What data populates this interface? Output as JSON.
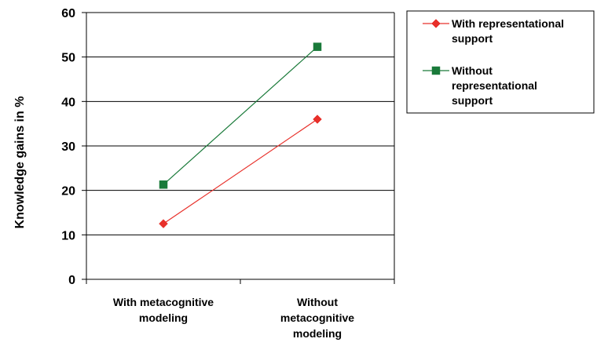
{
  "chart_data": {
    "type": "line",
    "categories": [
      [
        "With metacognitive",
        "modeling"
      ],
      [
        "Without",
        "metacognitive",
        "modeling"
      ]
    ],
    "ylabel": "Knowledge gains in %",
    "ylim": [
      0,
      60
    ],
    "yticks": [
      0,
      10,
      20,
      30,
      40,
      50,
      60
    ],
    "grid": true,
    "legend_position": "right",
    "series": [
      {
        "name": [
          "With representational",
          "support"
        ],
        "color": "#e8302a",
        "marker": "diamond",
        "values": [
          12.5,
          36
        ]
      },
      {
        "name": [
          "Without",
          "representational",
          "support"
        ],
        "color": "#1a7a3a",
        "marker": "square",
        "values": [
          21.3,
          52.3
        ]
      }
    ]
  }
}
